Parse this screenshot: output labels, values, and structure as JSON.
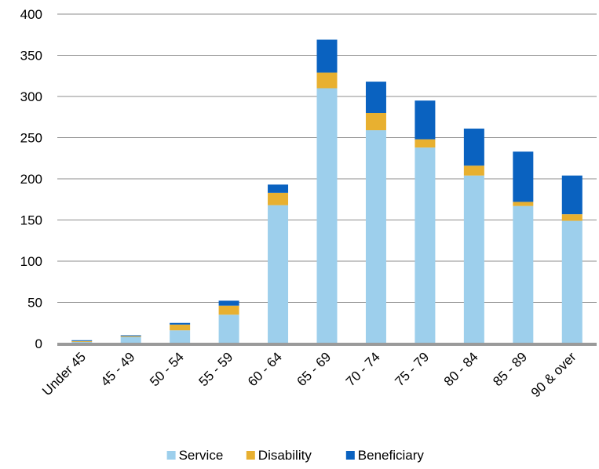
{
  "chart_data": {
    "type": "bar",
    "stacked": true,
    "categories": [
      "Under 45",
      "45 - 49",
      "50 - 54",
      "55 - 59",
      "60 - 64",
      "65 - 69",
      "70 - 74",
      "75 - 79",
      "80 - 84",
      "85 - 89",
      "90 & over"
    ],
    "series": [
      {
        "name": "Service",
        "color": "#9dcfec",
        "values": [
          2,
          8,
          16,
          35,
          168,
          310,
          259,
          238,
          204,
          167,
          149
        ]
      },
      {
        "name": "Disability",
        "color": "#e8b030",
        "values": [
          1,
          1,
          7,
          11,
          15,
          19,
          21,
          10,
          12,
          5,
          8
        ]
      },
      {
        "name": "Beneficiary",
        "color": "#0a62c0",
        "values": [
          1,
          1,
          2,
          6,
          10,
          40,
          38,
          47,
          45,
          61,
          47
        ]
      }
    ],
    "ylim": [
      0,
      400
    ],
    "yticks": [
      0,
      50,
      100,
      150,
      200,
      250,
      300,
      350,
      400
    ],
    "grid": true,
    "legend_position": "bottom",
    "title": "",
    "xlabel": "",
    "ylabel": ""
  }
}
